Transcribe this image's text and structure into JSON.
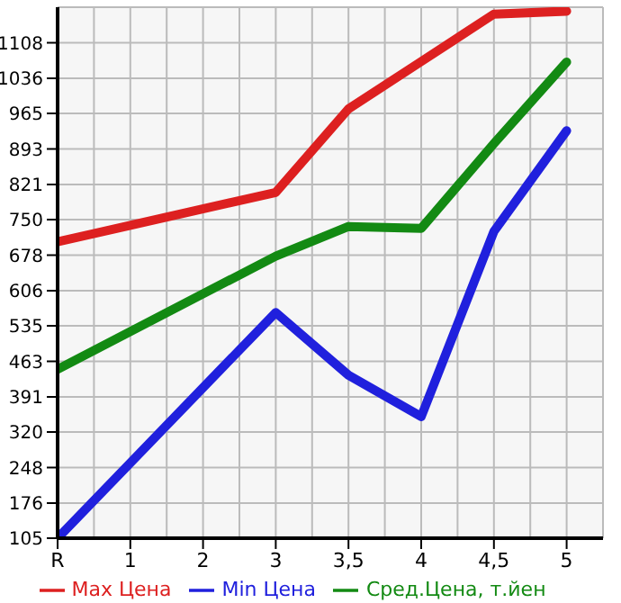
{
  "chart_data": {
    "type": "line",
    "categories": [
      "R",
      "1",
      "2",
      "3",
      "3,5",
      "4",
      "4,5",
      "5"
    ],
    "series": [
      {
        "name": "Max Цена",
        "color": "#dd2020",
        "values": [
          705,
          null,
          null,
          805,
          974,
          1070,
          1166,
          1172
        ]
      },
      {
        "name": "Min Цена",
        "color": "#2020dd",
        "values": [
          105,
          null,
          null,
          562,
          435,
          351,
          726,
          930
        ]
      },
      {
        "name": "Сред.Цена, т.йен",
        "color": "#138a13",
        "values": [
          447,
          null,
          null,
          676,
          736,
          732,
          904,
          1069
        ]
      }
    ],
    "ylim": [
      105,
      1180
    ],
    "yticks": [
      105,
      176,
      248,
      320,
      391,
      463,
      535,
      606,
      678,
      750,
      821,
      893,
      965,
      1036,
      1108
    ],
    "grid": true,
    "legend": "bottom",
    "marker": "none",
    "line_style": "solid"
  }
}
